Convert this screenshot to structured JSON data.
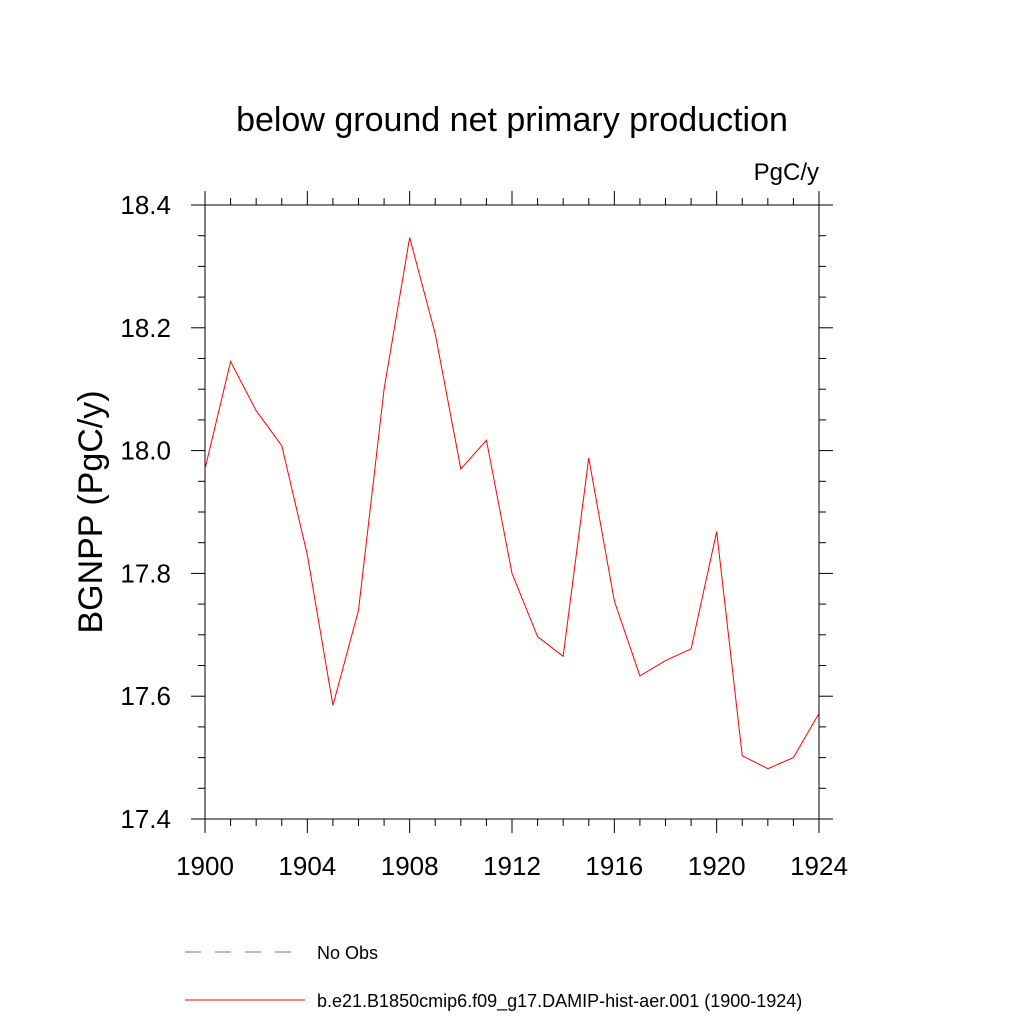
{
  "chart_data": {
    "type": "line",
    "title": "below ground net primary production",
    "units_label": "PgC/y",
    "ylabel": "BGNPP  (PgC/y)",
    "xlabel": "",
    "xlim": [
      1900,
      1924
    ],
    "ylim": [
      17.4,
      18.4
    ],
    "x_ticks": [
      1900,
      1904,
      1908,
      1912,
      1916,
      1920,
      1924
    ],
    "y_ticks": [
      "17.4",
      "17.6",
      "17.8",
      "18.0",
      "18.2",
      "18.4"
    ],
    "x_minor_step": 1,
    "y_minor_step": 0.05,
    "grid": false,
    "legend_position": "bottom",
    "x": [
      1900,
      1901,
      1902,
      1903,
      1904,
      1905,
      1906,
      1907,
      1908,
      1909,
      1910,
      1911,
      1912,
      1913,
      1914,
      1915,
      1916,
      1917,
      1918,
      1919,
      1920,
      1921,
      1922,
      1923,
      1924
    ],
    "series": [
      {
        "name": "b.e21.B1850cmip6.f09_g17.DAMIP-hist-aer.001 (1900-1924)",
        "color": "#ff0000",
        "style": "solid",
        "values": [
          17.97,
          18.145,
          18.065,
          18.008,
          17.83,
          17.585,
          17.74,
          18.1,
          18.347,
          18.19,
          17.97,
          18.017,
          17.8,
          17.697,
          17.665,
          17.988,
          17.755,
          17.633,
          17.658,
          17.677,
          17.868,
          17.503,
          17.482,
          17.5,
          17.572
        ]
      }
    ],
    "legend": [
      {
        "label": "No Obs",
        "color": "#6b6bd6",
        "style": "dashed"
      },
      {
        "label": "b.e21.B1850cmip6.f09_g17.DAMIP-hist-aer.001 (1900-1924)",
        "color": "#ff0000",
        "style": "solid"
      }
    ]
  }
}
